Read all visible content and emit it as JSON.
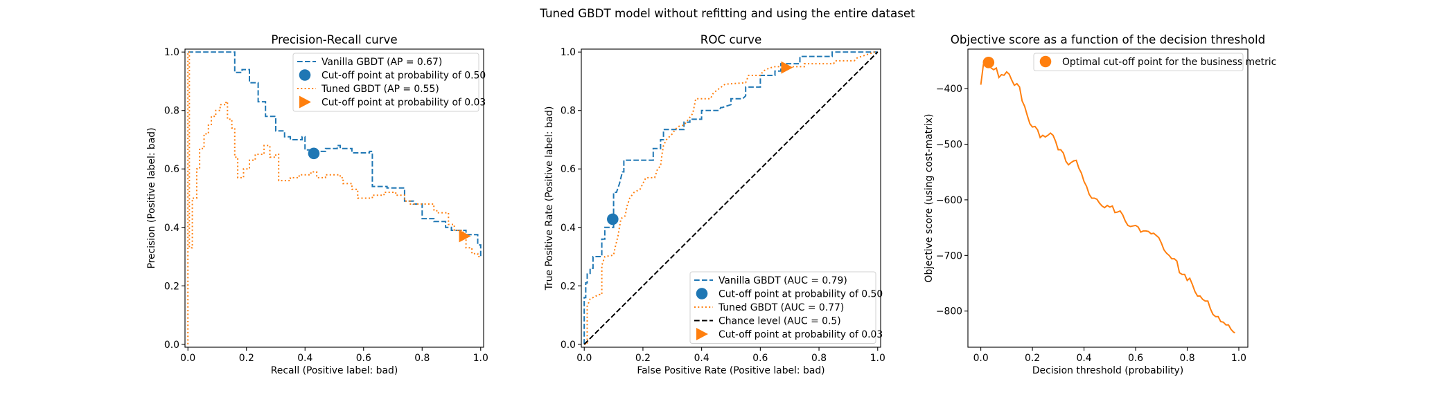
{
  "suptitle": "Tuned GBDT model without refitting and using the entire dataset",
  "colors": {
    "blue": "#1f77b4",
    "orange": "#ff7f0e",
    "black": "#000000"
  },
  "chart_data": [
    {
      "type": "line",
      "title": "Precision-Recall curve",
      "xlabel": "Recall (Positive label: bad)",
      "ylabel": "Precision (Positive label: bad)",
      "xlim": [
        -0.01,
        1.01
      ],
      "ylim": [
        -0.01,
        1.01
      ],
      "xticks": [
        0,
        0.2,
        0.4,
        0.6,
        0.8,
        1.0
      ],
      "xtick_labels": [
        "0.0",
        "0.2",
        "0.4",
        "0.6",
        "0.8",
        "1.0"
      ],
      "yticks": [
        0,
        0.2,
        0.4,
        0.6,
        0.8,
        1.0
      ],
      "ytick_labels": [
        "0.0",
        "0.2",
        "0.4",
        "0.6",
        "0.8",
        "1.0"
      ],
      "legend": "upper right",
      "series": [
        {
          "label": "Vanilla GBDT (AP = 0.67)",
          "color": "#1f77b4",
          "linestyle": "dashed",
          "drawstyle": "steps-post",
          "x": [
            0,
            0.16,
            0.185,
            0.21,
            0.24,
            0.265,
            0.3,
            0.33,
            0.35,
            0.39,
            0.4,
            0.43,
            0.47,
            0.51,
            0.52,
            0.56,
            0.62,
            0.63,
            0.68,
            0.73,
            0.74,
            0.77,
            0.8,
            0.84,
            0.88,
            0.9,
            0.95,
            0.99,
            1.0
          ],
          "y": [
            1.0,
            0.93,
            0.94,
            0.895,
            0.83,
            0.78,
            0.73,
            0.71,
            0.7,
            0.71,
            0.665,
            0.66,
            0.67,
            0.68,
            0.67,
            0.655,
            0.66,
            0.54,
            0.535,
            0.535,
            0.49,
            0.48,
            0.43,
            0.42,
            0.4,
            0.39,
            0.375,
            0.34,
            0.3
          ]
        },
        {
          "label": "Cut-off point at probability of 0.50",
          "color": "#1f77b4",
          "marker": "circle",
          "x": [
            0.43
          ],
          "y": [
            0.653
          ]
        },
        {
          "label": "Tuned GBDT (AP = 0.55)",
          "color": "#ff7f0e",
          "linestyle": "dotted",
          "drawstyle": "steps-post",
          "x": [
            0,
            0,
            0.005,
            0.015,
            0.03,
            0.04,
            0.055,
            0.07,
            0.08,
            0.095,
            0.11,
            0.13,
            0.135,
            0.15,
            0.16,
            0.17,
            0.19,
            0.21,
            0.23,
            0.26,
            0.28,
            0.3,
            0.31,
            0.35,
            0.38,
            0.42,
            0.44,
            0.47,
            0.52,
            0.53,
            0.56,
            0.58,
            0.63,
            0.67,
            0.71,
            0.74,
            0.76,
            0.84,
            0.85,
            0.89,
            0.91,
            0.94,
            0.95,
            0.97,
            0.99,
            1.0
          ],
          "y": [
            0,
            1.0,
            0.33,
            0.5,
            0.6,
            0.67,
            0.72,
            0.75,
            0.78,
            0.8,
            0.82,
            0.83,
            0.77,
            0.74,
            0.64,
            0.57,
            0.6,
            0.63,
            0.65,
            0.68,
            0.64,
            0.65,
            0.56,
            0.57,
            0.58,
            0.59,
            0.57,
            0.58,
            0.57,
            0.55,
            0.53,
            0.5,
            0.51,
            0.52,
            0.51,
            0.49,
            0.48,
            0.46,
            0.45,
            0.41,
            0.39,
            0.37,
            0.33,
            0.31,
            0.3,
            0.3
          ]
        },
        {
          "label": "Cut-off point at probability of 0.03",
          "color": "#ff7f0e",
          "marker": "triangle-right",
          "x": [
            0.945
          ],
          "y": [
            0.37
          ]
        }
      ]
    },
    {
      "type": "line",
      "title": "ROC curve",
      "xlabel": "False Positive Rate (Positive label: bad)",
      "ylabel": "True Positive Rate (Positive label: bad)",
      "xlim": [
        -0.01,
        1.01
      ],
      "ylim": [
        -0.01,
        1.01
      ],
      "xticks": [
        0,
        0.2,
        0.4,
        0.6,
        0.8,
        1.0
      ],
      "xtick_labels": [
        "0.0",
        "0.2",
        "0.4",
        "0.6",
        "0.8",
        "1.0"
      ],
      "yticks": [
        0,
        0.2,
        0.4,
        0.6,
        0.8,
        1.0
      ],
      "ytick_labels": [
        "0.0",
        "0.2",
        "0.4",
        "0.6",
        "0.8",
        "1.0"
      ],
      "legend": "lower right",
      "series": [
        {
          "label": "Vanilla GBDT (AUC = 0.79)",
          "color": "#1f77b4",
          "linestyle": "dashed",
          "drawstyle": "linear",
          "x": [
            0,
            0,
            0.005,
            0.005,
            0.01,
            0.01,
            0.02,
            0.02,
            0.03,
            0.03,
            0.05,
            0.06,
            0.06,
            0.07,
            0.07,
            0.1,
            0.1,
            0.11,
            0.12,
            0.12,
            0.13,
            0.13,
            0.135,
            0.135,
            0.23,
            0.235,
            0.235,
            0.26,
            0.26,
            0.27,
            0.27,
            0.33,
            0.34,
            0.34,
            0.36,
            0.36,
            0.39,
            0.4,
            0.4,
            0.46,
            0.465,
            0.47,
            0.5,
            0.5,
            0.54,
            0.55,
            0.55,
            0.59,
            0.6,
            0.6,
            0.64,
            0.65,
            0.65,
            0.67,
            0.67,
            0.73,
            0.735,
            0.735,
            0.84,
            0.845,
            0.845,
            1.0
          ],
          "y": [
            0,
            0.16,
            0.16,
            0.21,
            0.21,
            0.24,
            0.24,
            0.26,
            0.26,
            0.3,
            0.3,
            0.3,
            0.36,
            0.36,
            0.4,
            0.4,
            0.52,
            0.52,
            0.55,
            0.55,
            0.59,
            0.59,
            0.59,
            0.63,
            0.63,
            0.63,
            0.67,
            0.67,
            0.7,
            0.7,
            0.735,
            0.735,
            0.735,
            0.76,
            0.76,
            0.77,
            0.77,
            0.77,
            0.8,
            0.8,
            0.81,
            0.81,
            0.82,
            0.84,
            0.84,
            0.85,
            0.88,
            0.88,
            0.88,
            0.92,
            0.92,
            0.92,
            0.935,
            0.935,
            0.96,
            0.96,
            0.96,
            0.985,
            0.985,
            0.985,
            1.0,
            1.0
          ]
        },
        {
          "label": "Cut-off point at probability of 0.50",
          "color": "#1f77b4",
          "marker": "circle",
          "x": [
            0.097
          ],
          "y": [
            0.428
          ]
        },
        {
          "label": "Tuned GBDT (AUC = 0.77)",
          "color": "#ff7f0e",
          "linestyle": "dotted",
          "drawstyle": "linear",
          "x": [
            0,
            0.01,
            0.01,
            0.02,
            0.03,
            0.05,
            0.06,
            0.06,
            0.07,
            0.1,
            0.105,
            0.115,
            0.125,
            0.14,
            0.145,
            0.155,
            0.17,
            0.19,
            0.2,
            0.21,
            0.24,
            0.25,
            0.26,
            0.265,
            0.27,
            0.28,
            0.3,
            0.31,
            0.32,
            0.34,
            0.355,
            0.37,
            0.38,
            0.43,
            0.44,
            0.46,
            0.48,
            0.55,
            0.56,
            0.6,
            0.61,
            0.63,
            0.65,
            0.75,
            0.75,
            0.85,
            0.855,
            0.92,
            0.93,
            0.99,
            1.0
          ],
          "y": [
            0,
            0,
            0.13,
            0.155,
            0.16,
            0.17,
            0.17,
            0.27,
            0.3,
            0.305,
            0.33,
            0.37,
            0.43,
            0.44,
            0.47,
            0.5,
            0.52,
            0.53,
            0.55,
            0.57,
            0.57,
            0.6,
            0.61,
            0.65,
            0.68,
            0.7,
            0.72,
            0.735,
            0.745,
            0.75,
            0.77,
            0.79,
            0.84,
            0.84,
            0.86,
            0.875,
            0.89,
            0.895,
            0.92,
            0.92,
            0.935,
            0.945,
            0.95,
            0.95,
            0.96,
            0.96,
            0.97,
            0.97,
            0.98,
            1.0,
            1.0
          ]
        },
        {
          "label": "Chance level (AUC = 0.5)",
          "color": "#000000",
          "linestyle": "dashed",
          "drawstyle": "linear",
          "x": [
            0,
            1
          ],
          "y": [
            0,
            1
          ]
        },
        {
          "label": "Cut-off point at probability of 0.03",
          "color": "#ff7f0e",
          "marker": "triangle-right",
          "x": [
            0.69
          ],
          "y": [
            0.947
          ]
        }
      ]
    },
    {
      "type": "line",
      "title": "Objective score as a function of the decision threshold",
      "xlabel": "Decision threshold (probability)",
      "ylabel": "Objective score (using cost-matrix)",
      "xlim": [
        -0.05,
        1.035
      ],
      "ylim": [
        -865,
        -329
      ],
      "xticks": [
        0,
        0.2,
        0.4,
        0.6,
        0.8,
        1.0
      ],
      "xtick_labels": [
        "0.0",
        "0.2",
        "0.4",
        "0.6",
        "0.8",
        "1.0"
      ],
      "yticks": [
        -400,
        -500,
        -600,
        -700,
        -800
      ],
      "ytick_labels": [
        "−400",
        "−500",
        "−600",
        "−700",
        "−800"
      ],
      "legend": "upper right",
      "series": [
        {
          "label": "",
          "color": "#ff7f0e",
          "linestyle": "solid",
          "drawstyle": "linear",
          "x": [
            0,
            0.01,
            0.02,
            0.03,
            0.04,
            0.05,
            0.06,
            0.07,
            0.08,
            0.09,
            0.1,
            0.11,
            0.12,
            0.13,
            0.14,
            0.15,
            0.16,
            0.17,
            0.18,
            0.19,
            0.2,
            0.21,
            0.22,
            0.23,
            0.24,
            0.25,
            0.26,
            0.27,
            0.28,
            0.29,
            0.3,
            0.31,
            0.32,
            0.33,
            0.34,
            0.35,
            0.36,
            0.37,
            0.38,
            0.39,
            0.4,
            0.41,
            0.42,
            0.43,
            0.44,
            0.45,
            0.46,
            0.47,
            0.48,
            0.49,
            0.5,
            0.51,
            0.52,
            0.53,
            0.54,
            0.55,
            0.56,
            0.57,
            0.58,
            0.59,
            0.6,
            0.61,
            0.62,
            0.63,
            0.64,
            0.65,
            0.66,
            0.67,
            0.68,
            0.69,
            0.7,
            0.71,
            0.72,
            0.73,
            0.74,
            0.75,
            0.76,
            0.77,
            0.78,
            0.79,
            0.8,
            0.81,
            0.82,
            0.83,
            0.84,
            0.85,
            0.86,
            0.87,
            0.88,
            0.89,
            0.9,
            0.91,
            0.92,
            0.93,
            0.94,
            0.95,
            0.96,
            0.97,
            0.98,
            0.985
          ],
          "y": [
            -393,
            -357,
            -357,
            -353,
            -363,
            -366,
            -363,
            -380,
            -375,
            -376,
            -370,
            -374,
            -385,
            -394,
            -391,
            -397,
            -422,
            -432,
            -448,
            -463,
            -469,
            -468,
            -474,
            -488,
            -484,
            -487,
            -484,
            -480,
            -484,
            -495,
            -510,
            -510,
            -516,
            -531,
            -537,
            -533,
            -530,
            -529,
            -543,
            -552,
            -567,
            -576,
            -590,
            -597,
            -597,
            -599,
            -606,
            -611,
            -614,
            -610,
            -613,
            -611,
            -623,
            -622,
            -620,
            -627,
            -638,
            -646,
            -648,
            -647,
            -646,
            -649,
            -658,
            -656,
            -656,
            -657,
            -661,
            -660,
            -664,
            -668,
            -678,
            -690,
            -696,
            -700,
            -706,
            -706,
            -710,
            -731,
            -734,
            -734,
            -745,
            -741,
            -752,
            -765,
            -773,
            -773,
            -779,
            -782,
            -782,
            -796,
            -806,
            -810,
            -810,
            -819,
            -820,
            -825,
            -825,
            -833,
            -838,
            -839
          ]
        },
        {
          "label": "Optimal cut-off point for the business metric",
          "color": "#ff7f0e",
          "marker": "circle",
          "x": [
            0.03
          ],
          "y": [
            -353
          ]
        }
      ]
    }
  ]
}
